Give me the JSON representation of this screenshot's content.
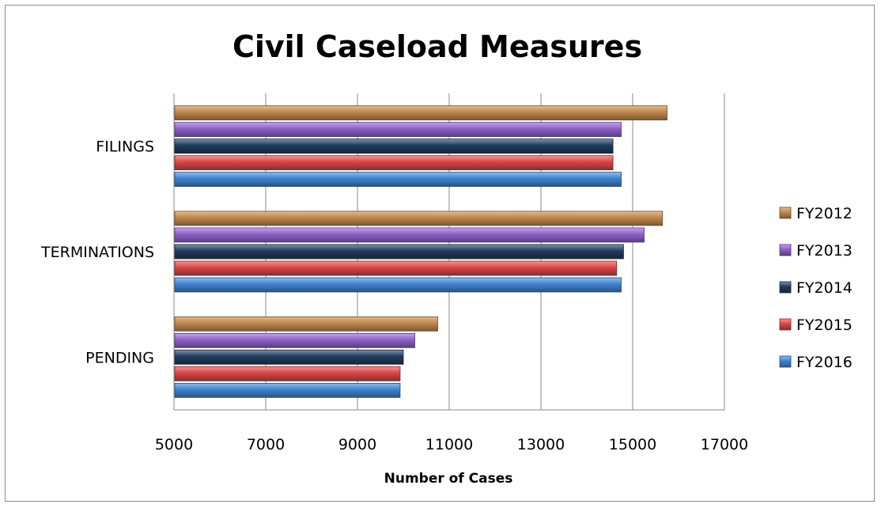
{
  "chart_data": {
    "type": "bar",
    "orientation": "horizontal",
    "title": "Civil Caseload Measures",
    "xlabel": "Number of Cases",
    "ylabel": "",
    "categories": [
      "FILINGS",
      "TERMINATIONS",
      "PENDING"
    ],
    "xlim": [
      5000,
      17000
    ],
    "xticks": [
      "5000",
      "7000",
      "9000",
      "11000",
      "13000",
      "15000",
      "17000"
    ],
    "grid": true,
    "legend_position": "right",
    "series": [
      {
        "name": "FY2012",
        "color": "#c0874a",
        "values": [
          15750,
          15650,
          10750
        ]
      },
      {
        "name": "FY2013",
        "color": "#8e5fc8",
        "values": [
          14750,
          15250,
          10250
        ]
      },
      {
        "name": "FY2014",
        "color": "#1f3a5e",
        "values": [
          14570,
          14800,
          10000
        ]
      },
      {
        "name": "FY2015",
        "color": "#d94545",
        "values": [
          14570,
          14650,
          9930
        ]
      },
      {
        "name": "FY2016",
        "color": "#3d82cf",
        "values": [
          14750,
          14750,
          9930
        ]
      }
    ]
  }
}
